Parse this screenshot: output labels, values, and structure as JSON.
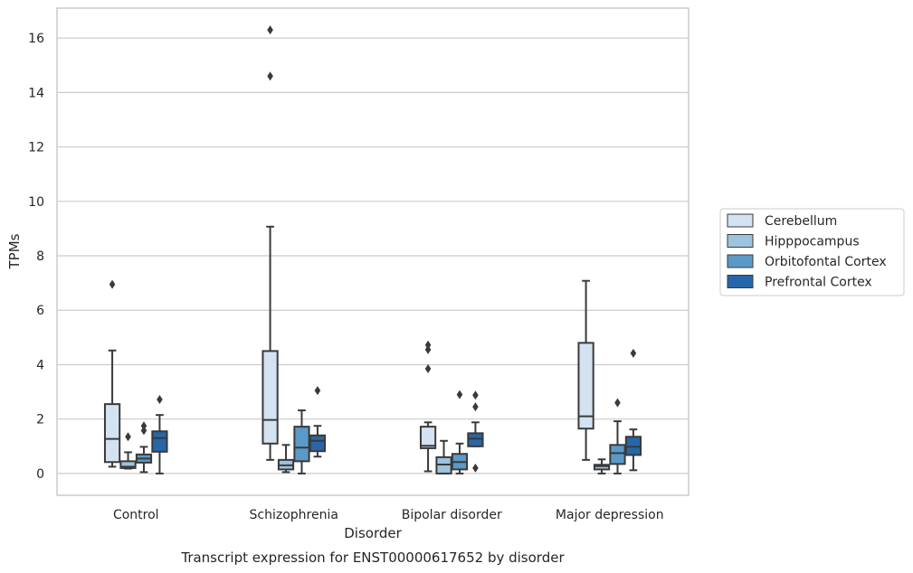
{
  "chart_data": {
    "type": "box",
    "title": "",
    "caption": "Transcript expression for ENST00000617652 by disorder",
    "xlabel": "Disorder",
    "ylabel": "TPMs",
    "ylim": [
      -0.8,
      17.1
    ],
    "yticks": [
      0,
      2,
      4,
      6,
      8,
      10,
      12,
      14,
      16
    ],
    "grid": "horizontal",
    "legend_placement": "right",
    "categories": [
      "Control",
      "Schizophrenia",
      "Bipolar disorder",
      "Major depression"
    ],
    "series": [
      {
        "name": "Cerebellum",
        "color": "#d4e3f2",
        "boxes": [
          {
            "whislo": 0.25,
            "q1": 0.42,
            "med": 1.27,
            "q3": 2.55,
            "whishi": 4.52,
            "fliers": [
              6.95
            ]
          },
          {
            "whislo": 0.5,
            "q1": 1.1,
            "med": 1.97,
            "q3": 4.5,
            "whishi": 9.07,
            "fliers": [
              14.6,
              16.3
            ]
          },
          {
            "whislo": 0.08,
            "q1": 0.93,
            "med": 1.02,
            "q3": 1.72,
            "whishi": 1.88,
            "fliers": [
              3.85,
              4.55,
              4.72
            ]
          },
          {
            "whislo": 0.5,
            "q1": 1.65,
            "med": 2.1,
            "q3": 4.8,
            "whishi": 7.08,
            "fliers": []
          }
        ]
      },
      {
        "name": "Hipppocampus",
        "color": "#9dc4de",
        "boxes": [
          {
            "whislo": 0.18,
            "q1": 0.2,
            "med": 0.25,
            "q3": 0.45,
            "whishi": 0.78,
            "fliers": [
              1.35
            ]
          },
          {
            "whislo": 0.05,
            "q1": 0.15,
            "med": 0.3,
            "q3": 0.5,
            "whishi": 1.05,
            "fliers": []
          },
          {
            "whislo": 0.0,
            "q1": 0.0,
            "med": 0.33,
            "q3": 0.6,
            "whishi": 1.2,
            "fliers": []
          },
          {
            "whislo": 0.0,
            "q1": 0.15,
            "med": 0.27,
            "q3": 0.32,
            "whishi": 0.52,
            "fliers": []
          }
        ]
      },
      {
        "name": "Orbitofontal Cortex",
        "color": "#5b9ac8",
        "boxes": [
          {
            "whislo": 0.05,
            "q1": 0.4,
            "med": 0.55,
            "q3": 0.7,
            "whishi": 0.98,
            "fliers": [
              1.58,
              1.75
            ]
          },
          {
            "whislo": 0.0,
            "q1": 0.45,
            "med": 0.95,
            "q3": 1.72,
            "whishi": 2.32,
            "fliers": []
          },
          {
            "whislo": 0.0,
            "q1": 0.15,
            "med": 0.42,
            "q3": 0.72,
            "whishi": 1.1,
            "fliers": [
              2.9
            ]
          },
          {
            "whislo": 0.0,
            "q1": 0.35,
            "med": 0.75,
            "q3": 1.05,
            "whishi": 1.92,
            "fliers": [
              2.6
            ]
          }
        ]
      },
      {
        "name": "Prefrontal Cortex",
        "color": "#2766a8",
        "boxes": [
          {
            "whislo": 0.0,
            "q1": 0.8,
            "med": 1.3,
            "q3": 1.55,
            "whishi": 2.15,
            "fliers": [
              2.72
            ]
          },
          {
            "whislo": 0.62,
            "q1": 0.82,
            "med": 1.2,
            "q3": 1.4,
            "whishi": 1.75,
            "fliers": [
              3.05
            ]
          },
          {
            "whislo": 1.0,
            "q1": 1.0,
            "med": 1.28,
            "q3": 1.48,
            "whishi": 1.88,
            "fliers": [
              0.2,
              2.45,
              2.88
            ]
          },
          {
            "whislo": 0.12,
            "q1": 0.68,
            "med": 0.98,
            "q3": 1.35,
            "whishi": 1.62,
            "fliers": [
              4.42
            ]
          }
        ]
      }
    ]
  }
}
